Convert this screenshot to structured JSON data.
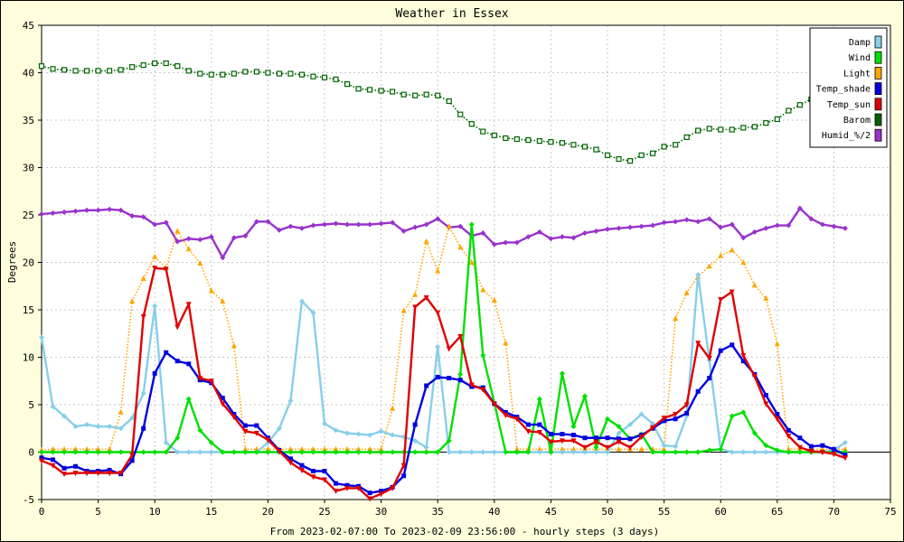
{
  "chart_data": {
    "type": "line",
    "title": "Weather in Essex",
    "xlabel": "From 2023-02-07:00 To 2023-02-09 23:56:00 - hourly steps (3 days)",
    "ylabel": "Degrees",
    "xlim": [
      0,
      75
    ],
    "ylim": [
      -5,
      45
    ],
    "xticks": [
      0,
      5,
      10,
      15,
      20,
      25,
      30,
      35,
      40,
      45,
      50,
      55,
      60,
      65,
      70,
      75
    ],
    "yticks": [
      -5,
      0,
      5,
      10,
      15,
      20,
      25,
      30,
      35,
      40,
      45
    ],
    "grid": true,
    "legend_position": "top-right",
    "series": [
      {
        "name": "Damp",
        "color": "#87ceeb",
        "marker": "diamond",
        "dash": "solid",
        "values": [
          12.1,
          4.8,
          3.8,
          2.7,
          2.9,
          2.7,
          2.7,
          2.5,
          3.6,
          6.2,
          15.4,
          1.0,
          0,
          0,
          0,
          0,
          0,
          0,
          0,
          0,
          1.0,
          2.5,
          5.4,
          15.9,
          14.7,
          3.0,
          2.3,
          2.0,
          1.9,
          1.8,
          2.2,
          1.8,
          1.6,
          1.2,
          0.5,
          11.1,
          0,
          0,
          0,
          0,
          0,
          0,
          0,
          0,
          0,
          0,
          0,
          0,
          0,
          0,
          0,
          2.0,
          2.9,
          4.0,
          3.0,
          0.7,
          0.6,
          3.8,
          18.7,
          9.7,
          0.3,
          0,
          0,
          0,
          0,
          0,
          0,
          0,
          0,
          0,
          0.2,
          1.0
        ]
      },
      {
        "name": "Wind",
        "color": "#00e000",
        "marker": "diamond",
        "dash": "solid",
        "values": [
          0,
          0,
          0,
          0,
          0,
          0,
          0,
          0,
          0,
          0,
          0,
          0,
          1.5,
          5.6,
          2.3,
          1.0,
          0,
          0,
          0,
          0,
          0,
          0,
          0,
          0,
          0,
          0,
          0,
          0,
          0,
          0,
          0,
          0,
          0,
          0,
          0,
          0,
          1.2,
          8.2,
          24.0,
          10.2,
          5.2,
          0,
          0,
          0,
          5.6,
          0,
          8.3,
          2.7,
          5.9,
          0.5,
          3.5,
          2.7,
          1.4,
          1.9,
          0,
          0,
          0,
          0,
          0,
          0.2,
          0.3,
          3.8,
          4.2,
          2.0,
          0.7,
          0.2,
          0,
          0,
          0,
          0,
          0,
          0
        ]
      },
      {
        "name": "Light",
        "color": "#ffa500",
        "marker": "triangle-up",
        "dash": "dotted",
        "values": [
          0.2,
          0.3,
          0.3,
          0.3,
          0.3,
          0.3,
          0.3,
          4.2,
          15.9,
          18.3,
          20.6,
          19.4,
          23.3,
          21.4,
          19.9,
          17.0,
          15.9,
          11.2,
          0.3,
          0.3,
          0.3,
          0.3,
          0.3,
          0.3,
          0.3,
          0.3,
          0.3,
          0.3,
          0.3,
          0.3,
          0.3,
          4.6,
          14.9,
          16.6,
          22.2,
          19.1,
          23.8,
          21.6,
          20.0,
          17.1,
          16.0,
          11.5,
          0.3,
          0.3,
          0.3,
          0.3,
          0.3,
          0.3,
          0.3,
          0.3,
          0.3,
          0.3,
          0.3,
          0.3,
          0.3,
          0.3,
          14.1,
          16.8,
          18.5,
          19.6,
          20.7,
          21.3,
          20.0,
          17.6,
          16.2,
          11.4,
          0.3,
          0.3,
          0.3,
          0.3,
          0.3,
          0.3
        ]
      },
      {
        "name": "Temp_shade",
        "color": "#0000e0",
        "marker": "square",
        "dash": "solid",
        "values": [
          -0.6,
          -0.8,
          -1.7,
          -1.5,
          -2.0,
          -2.0,
          -1.9,
          -2.3,
          -0.9,
          2.5,
          8.3,
          10.5,
          9.6,
          9.3,
          7.6,
          7.3,
          5.7,
          4.0,
          2.8,
          2.8,
          1.5,
          0.2,
          -0.7,
          -1.4,
          -2.0,
          -2.0,
          -3.3,
          -3.5,
          -3.6,
          -4.3,
          -4.1,
          -3.7,
          -2.5,
          2.9,
          7.0,
          7.9,
          7.8,
          7.6,
          6.9,
          6.8,
          5.1,
          4.2,
          3.7,
          2.9,
          2.9,
          1.9,
          1.9,
          1.8,
          1.5,
          1.5,
          1.5,
          1.4,
          1.4,
          1.8,
          2.5,
          3.3,
          3.5,
          4.1,
          6.4,
          7.8,
          10.7,
          11.3,
          9.6,
          8.2,
          6.0,
          4.0,
          2.3,
          1.5,
          0.6,
          0.7,
          0.3,
          -0.3
        ]
      },
      {
        "name": "Temp_sun",
        "color": "#e00000",
        "marker": "triangle-down",
        "dash": "solid",
        "values": [
          -0.9,
          -1.4,
          -2.3,
          -2.2,
          -2.2,
          -2.2,
          -2.2,
          -2.2,
          -0.3,
          14.3,
          19.4,
          19.3,
          13.2,
          15.6,
          7.8,
          7.5,
          5.1,
          3.7,
          2.2,
          2.0,
          1.3,
          0.1,
          -1.1,
          -1.9,
          -2.6,
          -2.9,
          -4.1,
          -3.8,
          -3.8,
          -4.9,
          -4.4,
          -3.8,
          -1.4,
          15.3,
          16.3,
          14.7,
          10.9,
          12.2,
          7.1,
          6.6,
          5.1,
          3.9,
          3.5,
          2.2,
          2.1,
          1.1,
          1.2,
          1.2,
          0.5,
          1.1,
          0.5,
          1.1,
          0.5,
          1.6,
          2.6,
          3.6,
          4.0,
          5.0,
          11.5,
          9.9,
          16.1,
          16.9,
          10.2,
          8.0,
          5.1,
          3.5,
          1.7,
          0.5,
          0.1,
          0,
          -0.2,
          -0.6
        ]
      },
      {
        "name": "Barom",
        "color": "#006400",
        "marker": "square-open",
        "dash": "dotted",
        "values": [
          40.7,
          40.4,
          40.3,
          40.2,
          40.2,
          40.2,
          40.2,
          40.3,
          40.6,
          40.8,
          41.0,
          41.0,
          40.7,
          40.2,
          39.9,
          39.8,
          39.8,
          39.9,
          40.1,
          40.1,
          40.0,
          39.9,
          39.9,
          39.8,
          39.6,
          39.5,
          39.3,
          38.8,
          38.3,
          38.2,
          38.1,
          38.0,
          37.7,
          37.6,
          37.7,
          37.6,
          37.0,
          35.6,
          34.6,
          33.8,
          33.4,
          33.1,
          33.0,
          32.9,
          32.8,
          32.7,
          32.6,
          32.4,
          32.2,
          31.9,
          31.3,
          30.9,
          30.7,
          31.3,
          31.5,
          32.2,
          32.4,
          33.2,
          33.9,
          34.1,
          34.0,
          34.0,
          34.2,
          34.3,
          34.7,
          35.1,
          36.0,
          36.6,
          37.2,
          37.5,
          37.6,
          37.7
        ]
      },
      {
        "name": "Humid_%/2",
        "color": "#9932cc",
        "marker": "diamond",
        "dash": "solid",
        "values": [
          25.1,
          25.2,
          25.3,
          25.4,
          25.5,
          25.5,
          25.6,
          25.5,
          24.9,
          24.8,
          24.0,
          24.2,
          22.2,
          22.5,
          22.4,
          22.7,
          20.5,
          22.6,
          22.8,
          24.3,
          24.3,
          23.4,
          23.8,
          23.6,
          23.9,
          24.0,
          24.1,
          24.0,
          24.0,
          24.0,
          24.1,
          24.2,
          23.3,
          23.7,
          24.0,
          24.6,
          23.7,
          23.8,
          22.8,
          23.1,
          21.9,
          22.1,
          22.1,
          22.7,
          23.2,
          22.5,
          22.7,
          22.6,
          23.1,
          23.3,
          23.5,
          23.6,
          23.7,
          23.8,
          23.9,
          24.2,
          24.3,
          24.5,
          24.3,
          24.6,
          23.7,
          24.0,
          22.6,
          23.2,
          23.6,
          23.9,
          23.9,
          25.7,
          24.6,
          24.0,
          23.8,
          23.6
        ]
      }
    ]
  }
}
